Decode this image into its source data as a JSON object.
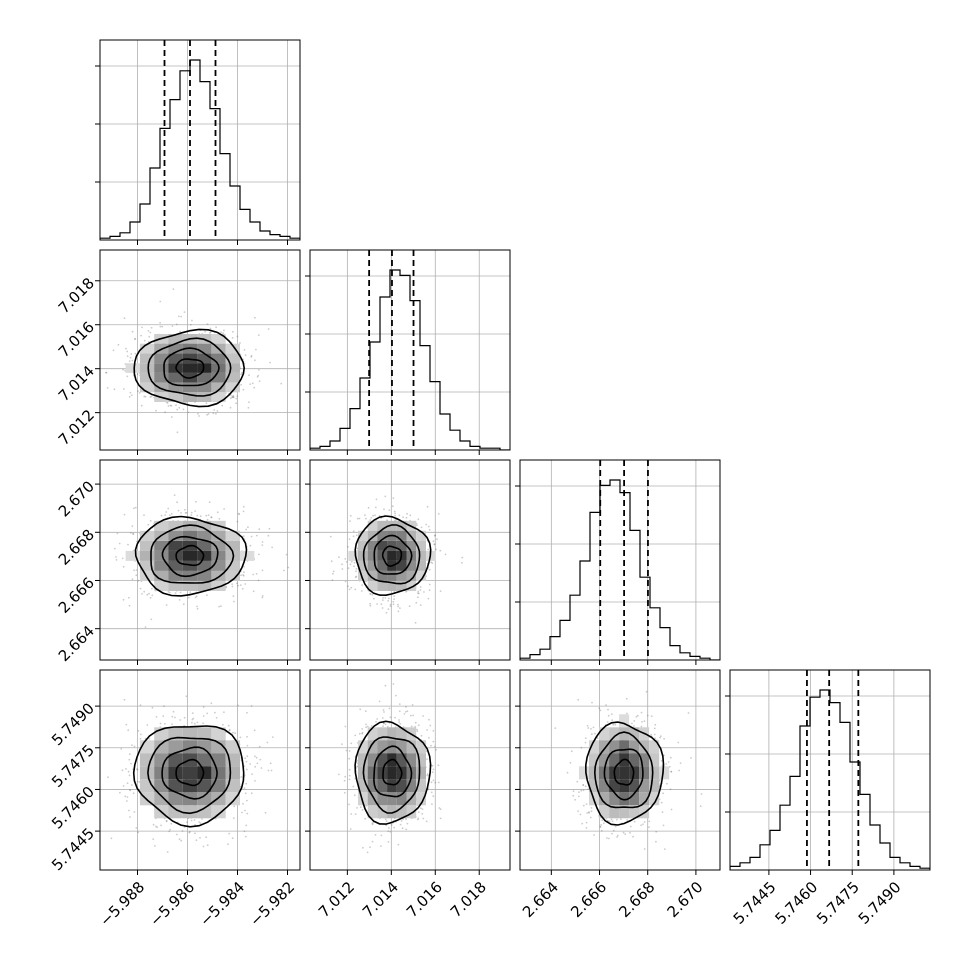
{
  "chart_data": {
    "type": "corner",
    "grid": true,
    "colors": {
      "line": "#000000",
      "grid": "#b0b0b0",
      "scatter": "#6e6e6e"
    },
    "parameters": [
      {
        "range": [
          -5.9895,
          -5.9815
        ],
        "mean": -5.9859,
        "sigma": 0.0011,
        "ticks": [
          -5.988,
          -5.986,
          -5.984,
          -5.982
        ],
        "tick_labels": [
          "−5.988",
          "−5.986",
          "−5.984",
          "−5.982"
        ],
        "quantiles": [
          -5.98692,
          -5.9859,
          -5.98488
        ]
      },
      {
        "range": [
          7.0103,
          7.0194
        ],
        "mean": 7.01403,
        "sigma": 0.00085,
        "ticks": [
          7.012,
          7.014,
          7.016,
          7.018
        ],
        "tick_labels": [
          "7.012",
          "7.014",
          "7.016",
          "7.018"
        ],
        "quantiles": [
          7.01299,
          7.01403,
          7.01501
        ]
      },
      {
        "range": [
          2.6627,
          2.671
        ],
        "mean": 2.66702,
        "sigma": 0.0008,
        "ticks": [
          2.664,
          2.666,
          2.668,
          2.67
        ],
        "tick_labels": [
          "2.664",
          "2.666",
          "2.668",
          "2.670"
        ],
        "quantiles": [
          2.66603,
          2.66702,
          2.66801
        ]
      },
      {
        "range": [
          5.7431,
          5.7503
        ],
        "mean": 5.7466,
        "sigma": 0.0009,
        "ticks": [
          5.7445,
          5.746,
          5.7475,
          5.749
        ],
        "tick_labels": [
          "5.7445",
          "5.7460",
          "5.7475",
          "5.7490"
        ],
        "quantiles": [
          5.74587,
          5.74667,
          5.74772
        ]
      }
    ],
    "histograms": [
      [
        0.01,
        0.02,
        0.04,
        0.1,
        0.2,
        0.4,
        0.62,
        0.78,
        0.94,
        1.0,
        0.88,
        0.73,
        0.48,
        0.3,
        0.17,
        0.1,
        0.05,
        0.03,
        0.02,
        0.01
      ],
      [
        0.01,
        0.02,
        0.05,
        0.12,
        0.23,
        0.4,
        0.6,
        0.85,
        1.0,
        0.97,
        0.83,
        0.58,
        0.38,
        0.2,
        0.11,
        0.05,
        0.02,
        0.01,
        0.01,
        0.0
      ],
      [
        0.01,
        0.03,
        0.06,
        0.13,
        0.22,
        0.36,
        0.55,
        0.82,
        0.97,
        1.0,
        0.93,
        0.72,
        0.46,
        0.29,
        0.18,
        0.08,
        0.04,
        0.02,
        0.01,
        0.0
      ],
      [
        0.02,
        0.04,
        0.07,
        0.14,
        0.22,
        0.36,
        0.52,
        0.8,
        0.96,
        1.0,
        0.93,
        0.82,
        0.6,
        0.42,
        0.25,
        0.15,
        0.07,
        0.04,
        0.02,
        0.01
      ]
    ]
  }
}
